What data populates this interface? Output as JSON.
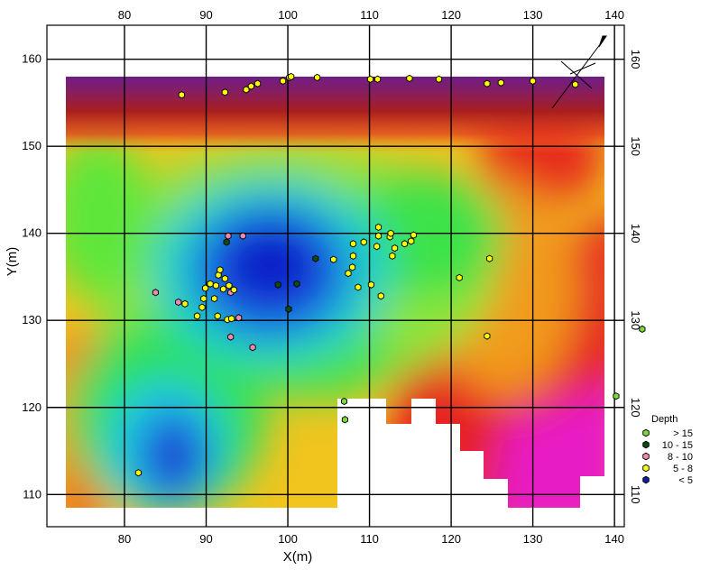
{
  "chart_data": {
    "type": "contour-scatter",
    "xlabel": "X(m)",
    "ylabel": "Y(m)",
    "xlim": [
      70.5,
      141.2
    ],
    "ylim": [
      106.3,
      163.9
    ],
    "x_ticks": [
      80,
      90,
      100,
      110,
      120,
      130,
      140
    ],
    "y_ticks": [
      110,
      120,
      130,
      140,
      150,
      160
    ],
    "grid": true,
    "colormap_note_colors": {
      "shallow": "#0a1fd6",
      "cyan": "#16c8e6",
      "green": "#1ee01e",
      "yellow": "#e6e61e",
      "orange": "#f58a1e",
      "red": "#e61e1e",
      "magenta": "#e61ec8",
      "purple": "#781e8c"
    },
    "legend": {
      "title": "Depth",
      "position": "right",
      "entries": [
        {
          "label": "> 15",
          "color": "#7ad83a"
        },
        {
          "label": "10 - 15",
          "color": "#0c4b14"
        },
        {
          "label": "8 - 10",
          "color": "#f08ab4"
        },
        {
          "label": "5 - 8",
          "color": "#ffff00"
        },
        {
          "label": "< 5",
          "color": "#0c1ea0"
        }
      ]
    },
    "series": [
      {
        "name": "> 15",
        "color": "#7ad83a",
        "points": [
          [
            106.9,
            120.7
          ],
          [
            107.0,
            118.6
          ],
          [
            143.4,
            129.0
          ],
          [
            140.2,
            121.3
          ]
        ]
      },
      {
        "name": "10 - 15",
        "color": "#0c4b14",
        "points": [
          [
            92.5,
            139.0
          ],
          [
            98.8,
            134.1
          ],
          [
            100.1,
            131.3
          ],
          [
            101.1,
            134.2
          ],
          [
            103.4,
            137.1
          ]
        ]
      },
      {
        "name": "8 - 10",
        "color": "#f08ab4",
        "points": [
          [
            83.8,
            133.2
          ],
          [
            86.6,
            132.1
          ],
          [
            92.7,
            139.7
          ],
          [
            94.5,
            139.7
          ],
          [
            93.0,
            133.2
          ],
          [
            94.0,
            130.3
          ],
          [
            93.0,
            128.1
          ],
          [
            95.7,
            126.9
          ]
        ]
      },
      {
        "name": "5 - 8",
        "color": "#ffff00",
        "points": [
          [
            87.0,
            155.9
          ],
          [
            92.3,
            156.2
          ],
          [
            94.9,
            156.5
          ],
          [
            95.5,
            156.9
          ],
          [
            96.3,
            157.2
          ],
          [
            99.4,
            157.5
          ],
          [
            100.2,
            157.9
          ],
          [
            100.4,
            158.0
          ],
          [
            103.6,
            157.9
          ],
          [
            110.1,
            157.7
          ],
          [
            111.0,
            157.7
          ],
          [
            114.9,
            157.8
          ],
          [
            118.5,
            157.7
          ],
          [
            124.4,
            157.2
          ],
          [
            126.1,
            157.3
          ],
          [
            130.0,
            157.5
          ],
          [
            135.2,
            157.1
          ],
          [
            81.7,
            112.5
          ],
          [
            87.4,
            131.9
          ],
          [
            88.9,
            130.5
          ],
          [
            89.5,
            131.5
          ],
          [
            89.7,
            132.5
          ],
          [
            89.9,
            133.7
          ],
          [
            90.5,
            134.2
          ],
          [
            91.0,
            132.5
          ],
          [
            91.2,
            134.0
          ],
          [
            91.4,
            130.5
          ],
          [
            91.5,
            135.2
          ],
          [
            91.7,
            135.8
          ],
          [
            92.1,
            133.6
          ],
          [
            92.3,
            134.8
          ],
          [
            92.8,
            134.0
          ],
          [
            93.4,
            133.5
          ],
          [
            92.6,
            130.1
          ],
          [
            93.1,
            130.2
          ],
          [
            105.6,
            137.0
          ],
          [
            107.4,
            135.4
          ],
          [
            107.9,
            136.1
          ],
          [
            108.0,
            137.4
          ],
          [
            108.0,
            138.8
          ],
          [
            108.6,
            133.8
          ],
          [
            109.3,
            139.0
          ],
          [
            110.2,
            134.1
          ],
          [
            110.9,
            138.5
          ],
          [
            111.1,
            139.7
          ],
          [
            111.1,
            140.7
          ],
          [
            111.4,
            132.8
          ],
          [
            112.5,
            139.6
          ],
          [
            112.6,
            140.0
          ],
          [
            112.8,
            137.4
          ],
          [
            113.1,
            138.3
          ],
          [
            114.3,
            138.8
          ],
          [
            115.1,
            139.1
          ],
          [
            115.4,
            139.8
          ],
          [
            121.0,
            134.9
          ],
          [
            124.7,
            137.1
          ],
          [
            124.4,
            128.2
          ]
        ]
      }
    ]
  }
}
